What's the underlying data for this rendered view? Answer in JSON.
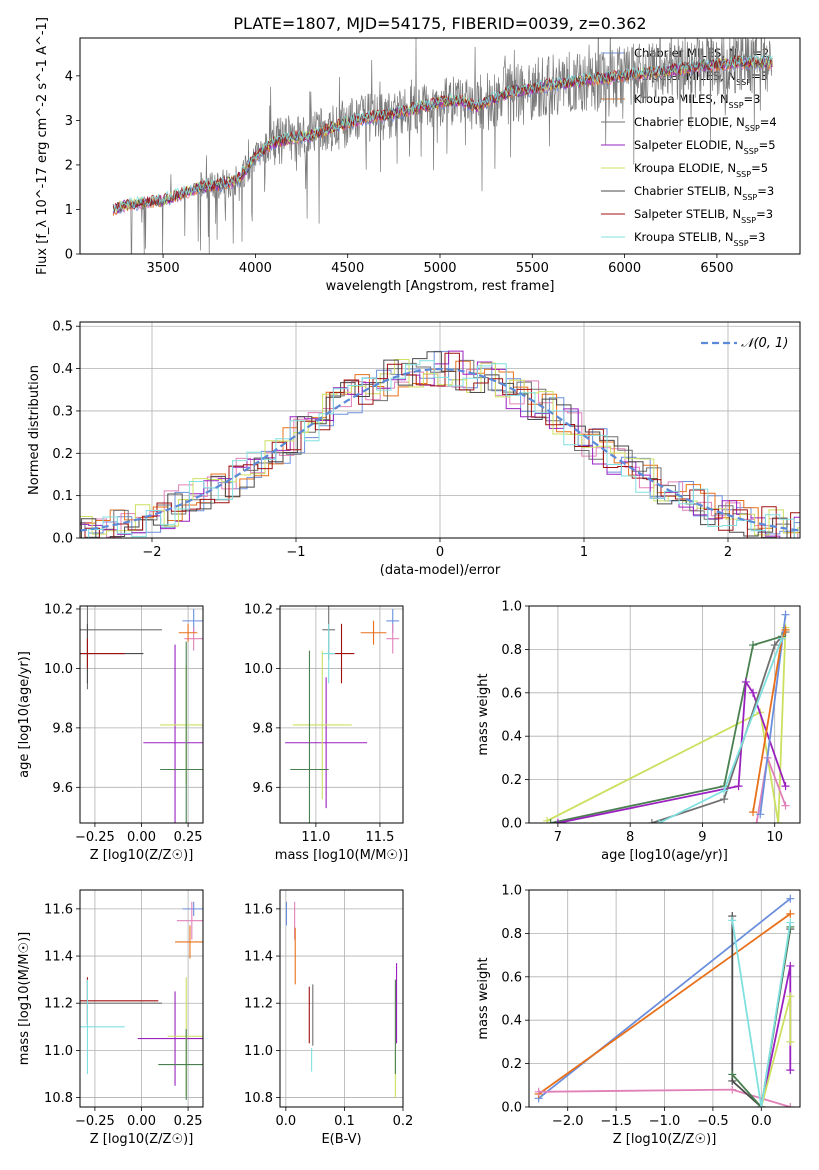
{
  "figure": {
    "title": "PLATE=1807, MJD=54175, FIBERID=0039, z=0.362"
  },
  "colors": {
    "Chabrier MILES": "#6b8fdc",
    "Salpeter MILES": "#e080b8",
    "Kroupa MILES": "#e8701a",
    "Chabrier ELODIE": "#707070",
    "Salpeter ELODIE": "#9a20c0",
    "Kroupa ELODIE": "#cce060",
    "Chabrier STELIB": "#4a4a4a",
    "Salpeter STELIB": "#a01010",
    "Kroupa STELIB": "#80e0e0",
    "Chabrier STELIB green": "#4a8050"
  },
  "legend_spectrum": [
    {
      "name": "Chabrier MILES",
      "nssp": "2",
      "color": "#6b8fdc"
    },
    {
      "name": "Salpeter MILES",
      "nssp": "3",
      "color": "#e080b8"
    },
    {
      "name": "Kroupa MILES",
      "nssp": "3",
      "color": "#e8701a"
    },
    {
      "name": "Chabrier ELODIE",
      "nssp": "4",
      "color": "#707070"
    },
    {
      "name": "Salpeter ELODIE",
      "nssp": "5",
      "color": "#9a20c0"
    },
    {
      "name": "Kroupa ELODIE",
      "nssp": "5",
      "color": "#cce060"
    },
    {
      "name": "Chabrier STELIB",
      "nssp": "3",
      "color": "#4a4a4a"
    },
    {
      "name": "Salpeter STELIB",
      "nssp": "3",
      "color": "#a01010"
    },
    {
      "name": "Kroupa STELIB",
      "nssp": "3",
      "color": "#80e0e0"
    }
  ],
  "chart_data": [
    {
      "id": "spectrum",
      "type": "line",
      "xlabel": "wavelength [Angstrom, rest frame]",
      "ylabel": "Flux [f_λ 10^-17 erg cm^-2 s^-1 A^-1]",
      "xlim": [
        3050,
        6950
      ],
      "ylim": [
        0,
        4.85
      ],
      "xticks": [
        "3500",
        "4000",
        "4500",
        "5000",
        "5500",
        "6000",
        "6500"
      ],
      "yticks": [
        "0",
        "1",
        "2",
        "3",
        "4"
      ],
      "x_tick_values": [
        3500,
        4000,
        4500,
        5000,
        5500,
        6000,
        6500
      ],
      "y_tick_values": [
        0,
        1,
        2,
        3,
        4
      ],
      "continuum": {
        "x": [
          3230,
          3300,
          3400,
          3500,
          3600,
          3700,
          3800,
          3900,
          3950,
          4000,
          4100,
          4200,
          4300,
          4400,
          4500,
          4600,
          4700,
          4800,
          4900,
          5000,
          5100,
          5200,
          5300,
          5400,
          5500,
          5600,
          5700,
          5800,
          5900,
          6000,
          6100,
          6200,
          6300,
          6400,
          6500,
          6600,
          6700,
          6800
        ],
        "y": [
          1.0,
          1.1,
          1.15,
          1.2,
          1.35,
          1.5,
          1.55,
          1.65,
          1.9,
          2.2,
          2.5,
          2.6,
          2.65,
          2.8,
          2.95,
          3.05,
          3.1,
          3.2,
          3.3,
          3.4,
          3.45,
          3.3,
          3.5,
          3.65,
          3.7,
          3.8,
          3.85,
          3.9,
          3.95,
          4.0,
          4.05,
          4.1,
          4.15,
          4.2,
          4.25,
          4.3,
          4.3,
          4.3
        ]
      }
    },
    {
      "id": "residuals",
      "type": "line",
      "xlabel": "(data-model)/error",
      "ylabel": "Normed distribution",
      "xlim": [
        -2.5,
        2.5
      ],
      "ylim": [
        0,
        0.51
      ],
      "xticks": [
        "−2",
        "−1",
        "0",
        "1",
        "2"
      ],
      "yticks": [
        "0.0",
        "0.1",
        "0.2",
        "0.3",
        "0.4",
        "0.5"
      ],
      "x_tick_values": [
        -2,
        -1,
        0,
        1,
        2
      ],
      "y_tick_values": [
        0,
        0.1,
        0.2,
        0.3,
        0.4,
        0.5
      ],
      "legend": "𝒩(0, 1)",
      "gaussian": {
        "mean": 0,
        "sigma": 1
      }
    },
    {
      "id": "age_vs_Z",
      "type": "scatter",
      "xlabel": "Z [log10(Z/Z☉)]",
      "ylabel": "age [log10(age/yr)]",
      "xlim": [
        -0.33,
        0.33
      ],
      "ylim": [
        9.48,
        10.21
      ],
      "xticks": [
        "−0.25",
        "0.00",
        "0.25"
      ],
      "yticks": [
        "9.6",
        "9.8",
        "10.0",
        "10.2"
      ],
      "x_tick_values": [
        -0.25,
        0,
        0.25
      ],
      "y_tick_values": [
        9.6,
        9.8,
        10.0,
        10.2
      ],
      "points": [
        {
          "x": 0.28,
          "y": 10.16,
          "xerr": 0.06,
          "yerr": 0.04,
          "color": "#6b8fdc"
        },
        {
          "x": 0.28,
          "y": 10.1,
          "xerr": 0.05,
          "yerr": 0.04,
          "color": "#e080b8"
        },
        {
          "x": 0.25,
          "y": 10.12,
          "xerr": 0.05,
          "yerr": 0.03,
          "color": "#e8701a"
        },
        {
          "x": -0.29,
          "y": 10.13,
          "xerr": 0.4,
          "yerr": 0.2,
          "color": "#707070"
        },
        {
          "x": 0.18,
          "y": 9.75,
          "xerr": 0.17,
          "yerr": 0.33,
          "color": "#9a20c0"
        },
        {
          "x": 0.24,
          "y": 9.81,
          "xerr": 0.14,
          "yerr": 0.2,
          "color": "#cce060"
        },
        {
          "x": -0.29,
          "y": 10.05,
          "xerr": 0.3,
          "yerr": 0.1,
          "color": "#4a4a4a"
        },
        {
          "x": -0.29,
          "y": 10.05,
          "xerr": 0.2,
          "yerr": 0.05,
          "color": "#a01010"
        },
        {
          "x": 0.24,
          "y": 9.66,
          "xerr": 0.14,
          "yerr": 0.43,
          "color": "#4a8050"
        }
      ]
    },
    {
      "id": "age_vs_mass",
      "type": "scatter",
      "xlabel": "mass [log10(M/M☉)]",
      "ylabel": "",
      "xlim": [
        10.72,
        11.68
      ],
      "ylim": [
        9.48,
        10.21
      ],
      "xticks": [
        "11.0",
        "11.5"
      ],
      "yticks": [
        "9.6",
        "9.8",
        "10.0",
        "10.2"
      ],
      "x_tick_values": [
        11.0,
        11.5
      ],
      "y_tick_values": [
        9.6,
        9.8,
        10.0,
        10.2
      ],
      "points": [
        {
          "x": 11.6,
          "y": 10.16,
          "xerr": 0.05,
          "yerr": 0.04,
          "color": "#6b8fdc"
        },
        {
          "x": 11.6,
          "y": 10.1,
          "xerr": 0.05,
          "yerr": 0.05,
          "color": "#e080b8"
        },
        {
          "x": 11.45,
          "y": 10.12,
          "xerr": 0.1,
          "yerr": 0.04,
          "color": "#e8701a"
        },
        {
          "x": 11.1,
          "y": 10.13,
          "xerr": 0.05,
          "yerr": 0.1,
          "color": "#707070"
        },
        {
          "x": 11.08,
          "y": 9.75,
          "xerr": 0.32,
          "yerr": 0.22,
          "color": "#9a20c0"
        },
        {
          "x": 11.05,
          "y": 9.81,
          "xerr": 0.23,
          "yerr": 0.25,
          "color": "#cce060"
        },
        {
          "x": 11.2,
          "y": 10.05,
          "xerr": 0.1,
          "yerr": 0.1,
          "color": "#a01010"
        },
        {
          "x": 11.1,
          "y": 10.05,
          "xerr": 0.05,
          "yerr": 0.1,
          "color": "#80e0e0"
        },
        {
          "x": 10.95,
          "y": 9.66,
          "xerr": 0.15,
          "yerr": 0.4,
          "color": "#4a8050"
        }
      ]
    },
    {
      "id": "weight_vs_age",
      "type": "line",
      "xlabel": "age [log10(age/yr)]",
      "ylabel": "mass weight",
      "xlim": [
        6.6,
        10.35
      ],
      "ylim": [
        0,
        1.0
      ],
      "xticks": [
        "7",
        "8",
        "9",
        "10"
      ],
      "yticks": [
        "0.0",
        "0.2",
        "0.4",
        "0.6",
        "0.8",
        "1.0"
      ],
      "x_tick_values": [
        7,
        8,
        9,
        10
      ],
      "y_tick_values": [
        0,
        0.2,
        0.4,
        0.6,
        0.8,
        1.0
      ],
      "series": [
        {
          "color": "#cce060",
          "x": [
            6.85,
            9.8,
            10.05,
            10.15
          ],
          "y": [
            0.01,
            0.51,
            0.0,
            0.9
          ]
        },
        {
          "color": "#4a8050",
          "x": [
            6.9,
            9.3,
            9.7,
            10.1
          ],
          "y": [
            0.0,
            0.17,
            0.82,
            0.86
          ]
        },
        {
          "color": "#9a20c0",
          "x": [
            7.0,
            9.5,
            9.6,
            9.7,
            10.15
          ],
          "y": [
            0.0,
            0.17,
            0.65,
            0.6,
            0.17
          ]
        },
        {
          "color": "#e080b8",
          "x": [
            9.75,
            9.9,
            10.15
          ],
          "y": [
            0.0,
            0.3,
            0.08
          ]
        },
        {
          "color": "#707070",
          "x": [
            8.3,
            9.3,
            10.0,
            10.15
          ],
          "y": [
            0.0,
            0.11,
            0.82,
            0.88
          ]
        },
        {
          "color": "#6b8fdc",
          "x": [
            9.8,
            10.15
          ],
          "y": [
            0.04,
            0.96
          ]
        },
        {
          "color": "#e8701a",
          "x": [
            9.7,
            10.1,
            10.15
          ],
          "y": [
            0.05,
            0.85,
            0.89
          ]
        },
        {
          "color": "#80e0e0",
          "x": [
            8.4,
            9.3,
            10.1
          ],
          "y": [
            0.0,
            0.15,
            0.85
          ]
        }
      ]
    },
    {
      "id": "mass_vs_Z",
      "type": "scatter",
      "xlabel": "Z [log10(Z/Z☉)]",
      "ylabel": "mass [log10(M/M☉)]",
      "xlim": [
        -0.33,
        0.33
      ],
      "ylim": [
        10.76,
        11.68
      ],
      "xticks": [
        "−0.25",
        "0.00",
        "0.25"
      ],
      "yticks": [
        "10.8",
        "11.0",
        "11.2",
        "11.4",
        "11.6"
      ],
      "x_tick_values": [
        -0.25,
        0,
        0.25
      ],
      "y_tick_values": [
        10.8,
        11.0,
        11.2,
        11.4,
        11.6
      ],
      "points": [
        {
          "x": 0.28,
          "y": 11.6,
          "xerr": 0.06,
          "yerr": 0.03,
          "color": "#6b8fdc"
        },
        {
          "x": 0.27,
          "y": 11.55,
          "xerr": 0.08,
          "yerr": 0.08,
          "color": "#e080b8"
        },
        {
          "x": 0.26,
          "y": 11.46,
          "xerr": 0.08,
          "yerr": 0.07,
          "color": "#e8701a"
        },
        {
          "x": -0.29,
          "y": 11.2,
          "xerr": 0.4,
          "yerr": 0.1,
          "color": "#707070"
        },
        {
          "x": 0.18,
          "y": 11.05,
          "xerr": 0.2,
          "yerr": 0.2,
          "color": "#9a20c0"
        },
        {
          "x": 0.24,
          "y": 11.06,
          "xerr": 0.1,
          "yerr": 0.25,
          "color": "#cce060"
        },
        {
          "x": -0.29,
          "y": 11.21,
          "xerr": 0.38,
          "yerr": 0.1,
          "color": "#a01010"
        },
        {
          "x": -0.29,
          "y": 11.1,
          "xerr": 0.2,
          "yerr": 0.2,
          "color": "#80e0e0"
        },
        {
          "x": 0.24,
          "y": 10.94,
          "xerr": 0.15,
          "yerr": 0.15,
          "color": "#4a8050"
        }
      ]
    },
    {
      "id": "mass_vs_ebv",
      "type": "scatter",
      "xlabel": "E(B-V)",
      "ylabel": "",
      "xlim": [
        -0.01,
        0.2
      ],
      "ylim": [
        10.76,
        11.68
      ],
      "xticks": [
        "0.0",
        "0.1",
        "0.2"
      ],
      "yticks": [
        "10.8",
        "11.0",
        "11.2",
        "11.4",
        "11.6"
      ],
      "x_tick_values": [
        0,
        0.1,
        0.2
      ],
      "y_tick_values": [
        10.8,
        11.0,
        11.2,
        11.4,
        11.6
      ],
      "points": [
        {
          "x": 0.001,
          "y": 11.58,
          "xerr": 0,
          "yerr": 0.05,
          "color": "#6b8fdc"
        },
        {
          "x": 0.015,
          "y": 11.55,
          "xerr": 0,
          "yerr": 0.08,
          "color": "#e080b8"
        },
        {
          "x": 0.016,
          "y": 11.4,
          "xerr": 0,
          "yerr": 0.12,
          "color": "#e8701a"
        },
        {
          "x": 0.046,
          "y": 11.15,
          "xerr": 0,
          "yerr": 0.13,
          "color": "#707070"
        },
        {
          "x": 0.189,
          "y": 11.2,
          "xerr": 0,
          "yerr": 0.17,
          "color": "#9a20c0"
        },
        {
          "x": 0.187,
          "y": 10.9,
          "xerr": 0,
          "yerr": 0.1,
          "color": "#cce060"
        },
        {
          "x": 0.04,
          "y": 11.15,
          "xerr": 0,
          "yerr": 0.12,
          "color": "#a01010"
        },
        {
          "x": 0.044,
          "y": 10.96,
          "xerr": 0,
          "yerr": 0.05,
          "color": "#80e0e0"
        },
        {
          "x": 0.187,
          "y": 11.1,
          "xerr": 0,
          "yerr": 0.2,
          "color": "#4a8050"
        }
      ]
    },
    {
      "id": "weight_vs_Z",
      "type": "line",
      "xlabel": "Z [log10(Z/Z☉)]",
      "ylabel": "mass weight",
      "xlim": [
        -2.4,
        0.4
      ],
      "ylim": [
        0,
        1.0
      ],
      "xticks": [
        "−2.0",
        "−1.5",
        "−1.0",
        "−0.5",
        "0.0"
      ],
      "yticks": [
        "0.0",
        "0.2",
        "0.4",
        "0.6",
        "0.8",
        "1.0"
      ],
      "x_tick_values": [
        -2.0,
        -1.5,
        -1.0,
        -0.5,
        0.0
      ],
      "y_tick_values": [
        0,
        0.2,
        0.4,
        0.6,
        0.8,
        1.0
      ],
      "series": [
        {
          "color": "#6b8fdc",
          "x": [
            -2.3,
            0.3
          ],
          "y": [
            0.04,
            0.96
          ]
        },
        {
          "color": "#e8701a",
          "x": [
            -2.3,
            0.3
          ],
          "y": [
            0.06,
            0.89
          ]
        },
        {
          "color": "#e080b8",
          "x": [
            -2.3,
            -0.3,
            0.3
          ],
          "y": [
            0.07,
            0.08,
            0.0
          ]
        },
        {
          "color": "#4a4a4a",
          "x": [
            -0.3,
            -0.3,
            0.0,
            0.3
          ],
          "y": [
            0.88,
            0.12,
            0.0,
            0.82
          ]
        },
        {
          "color": "#4a8050",
          "x": [
            -0.3,
            0.0,
            0.3
          ],
          "y": [
            0.15,
            0.0,
            0.83
          ]
        },
        {
          "color": "#9a20c0",
          "x": [
            0.0,
            0.3,
            0.3
          ],
          "y": [
            0.0,
            0.65,
            0.17
          ]
        },
        {
          "color": "#cce060",
          "x": [
            0.0,
            0.3,
            0.3
          ],
          "y": [
            0.0,
            0.51,
            0.3
          ]
        },
        {
          "color": "#80e0e0",
          "x": [
            -0.3,
            0.0,
            0.3
          ],
          "y": [
            0.86,
            0.0,
            0.85
          ]
        }
      ]
    }
  ]
}
